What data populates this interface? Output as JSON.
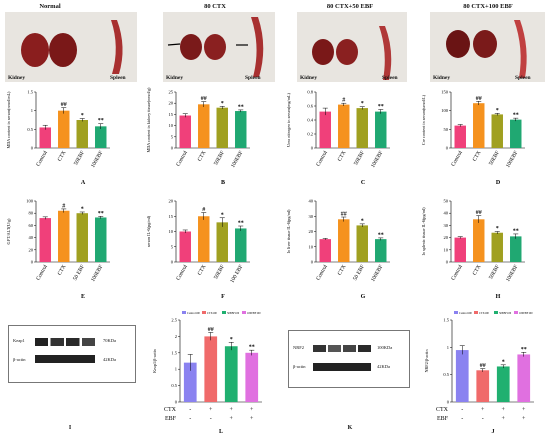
{
  "photos": [
    {
      "title": "Normal",
      "kidney_label": "Kidney",
      "spleen_label": "Spleen"
    },
    {
      "title": "80 CTX",
      "kidney_label": "Kidney",
      "spleen_label": "Spleen"
    },
    {
      "title": "80 CTX+50 EBF",
      "kidney_label": "Kidney",
      "spleen_label": "Spleen"
    },
    {
      "title": "80 CTX+100 EBF",
      "kidney_label": "Kidney",
      "spleen_label": "Spleen"
    }
  ],
  "colors": {
    "control": "#f0407a",
    "ctx": "#f5921e",
    "ebf50": "#a0a020",
    "ebf100": "#20a872",
    "l_control": "#8a82f0",
    "l_ctx": "#f06a6a",
    "l_ebf50": "#20b070",
    "l_ebf100": "#e070e0"
  },
  "chart_data": [
    {
      "id": "A",
      "type": "bar",
      "ylabel": "MDA content in serum(nmol/mL)",
      "categories": [
        "Control",
        "CTX",
        "50EBF",
        "100EBF"
      ],
      "values": [
        0.55,
        1.0,
        0.75,
        0.58
      ],
      "errors": [
        0.06,
        0.08,
        0.04,
        0.07
      ],
      "ylim": [
        0,
        1.5
      ],
      "yticks": [
        0,
        0.5,
        1.0,
        1.5
      ],
      "sig": [
        "",
        "##",
        "*",
        "**"
      ],
      "letter": "A"
    },
    {
      "id": "B",
      "type": "bar",
      "ylabel": "MDA content in kidney tissue(nmol/g)",
      "categories": [
        "Control",
        "CTX",
        "50EBF",
        "100EBF"
      ],
      "values": [
        14.5,
        19.5,
        18,
        16.5
      ],
      "errors": [
        0.8,
        1.2,
        0.6,
        0.5
      ],
      "ylim": [
        0,
        25
      ],
      "yticks": [
        0,
        5,
        10,
        15,
        20,
        25
      ],
      "sig": [
        "",
        "##",
        "*",
        "**"
      ],
      "letter": "B"
    },
    {
      "id": "C",
      "type": "bar",
      "ylabel": "Urea nitrogen in serum(mg/mL)",
      "categories": [
        "Control",
        "CTX",
        "50EBF",
        "100EBF"
      ],
      "values": [
        0.52,
        0.62,
        0.57,
        0.52
      ],
      "errors": [
        0.05,
        0.02,
        0.02,
        0.03
      ],
      "ylim": [
        0,
        0.8
      ],
      "yticks": [
        0,
        0.2,
        0.4,
        0.6,
        0.8
      ],
      "sig": [
        "",
        "#",
        "*",
        "**"
      ],
      "letter": "C"
    },
    {
      "id": "D",
      "type": "bar",
      "ylabel": "Cre content in serum(umol/L)",
      "categories": [
        "Control",
        "CTX",
        "50EBF",
        "100EBF"
      ],
      "values": [
        60,
        120,
        90,
        76
      ],
      "errors": [
        3,
        5,
        3,
        4
      ],
      "ylim": [
        0,
        150
      ],
      "yticks": [
        0,
        50,
        100,
        150
      ],
      "sig": [
        "",
        "##",
        "*",
        "**"
      ],
      "letter": "D"
    },
    {
      "id": "E",
      "type": "bar",
      "ylabel": "GPT/ALT(U/g)",
      "categories": [
        "Control",
        "CTX",
        "50 EBF",
        "100EBF"
      ],
      "values": [
        72,
        84,
        80,
        73
      ],
      "errors": [
        2,
        3,
        2,
        2
      ],
      "ylim": [
        0,
        100
      ],
      "yticks": [
        0,
        20,
        40,
        60,
        80,
        100
      ],
      "sig": [
        "",
        "#",
        "*",
        "**"
      ],
      "letter": "E"
    },
    {
      "id": "F",
      "type": "bar",
      "ylabel": "serum IL-6(pg/ml)",
      "categories": [
        "Control",
        "CTX",
        "50EBF",
        "100 EBF"
      ],
      "values": [
        10,
        15,
        13,
        11
      ],
      "errors": [
        0.5,
        1.2,
        1.5,
        0.8
      ],
      "ylim": [
        0,
        20
      ],
      "yticks": [
        0,
        5,
        10,
        15,
        20
      ],
      "sig": [
        "",
        "#",
        "*",
        "**"
      ],
      "letter": "F"
    },
    {
      "id": "G",
      "type": "bar",
      "ylabel": "In liver tissue IL-6(pg/ml)",
      "categories": [
        "Control",
        "CTX",
        "50 EBF",
        "100EBF"
      ],
      "values": [
        15,
        28,
        24,
        15
      ],
      "errors": [
        0.5,
        1.5,
        1,
        0.8
      ],
      "ylim": [
        0,
        40
      ],
      "yticks": [
        0,
        10,
        20,
        30,
        40
      ],
      "sig": [
        "",
        "##",
        "*",
        "**"
      ],
      "letter": "G"
    },
    {
      "id": "H",
      "type": "bar",
      "ylabel": "In splenic tissue IL-6(pg/ml)",
      "categories": [
        "Control",
        "CTX",
        "50EBF",
        "100EBF"
      ],
      "values": [
        20,
        35,
        24,
        21
      ],
      "errors": [
        0.8,
        3,
        1,
        2
      ],
      "ylim": [
        0,
        50
      ],
      "yticks": [
        0,
        10,
        20,
        30,
        40,
        50
      ],
      "sig": [
        "",
        "##",
        "*",
        "**"
      ],
      "letter": "H"
    },
    {
      "id": "L",
      "type": "bar",
      "ylabel": "Keap1/β-actin",
      "legend": [
        "Control100",
        "CTX100",
        "50EBF100",
        "100EBF100"
      ],
      "values": [
        1.2,
        2.0,
        1.7,
        1.5
      ],
      "errors": [
        0.25,
        0.12,
        0.12,
        0.08
      ],
      "ylim": [
        0,
        2.5
      ],
      "yticks": [
        0,
        0.5,
        1.0,
        1.5,
        2.0,
        2.5
      ],
      "sig": [
        "",
        "##",
        "*",
        "**"
      ],
      "ctx": [
        "-",
        "+",
        "+",
        "+"
      ],
      "ebf": [
        "-",
        "-",
        "+",
        "+"
      ],
      "letter": "L"
    },
    {
      "id": "J",
      "type": "bar",
      "ylabel": "NRF2/β-actin",
      "legend": [
        "Control100",
        "CTX100",
        "50EBF100",
        "100EBF100"
      ],
      "values": [
        0.95,
        0.58,
        0.65,
        0.87
      ],
      "errors": [
        0.08,
        0.03,
        0.03,
        0.04
      ],
      "ylim": [
        0,
        1.5
      ],
      "yticks": [
        0,
        0.5,
        1.0,
        1.5
      ],
      "sig": [
        "",
        "##",
        "*",
        "**"
      ],
      "ctx": [
        "-",
        "+",
        "+",
        "+"
      ],
      "ebf": [
        "-",
        "-",
        "+",
        "+"
      ],
      "letter": "J"
    }
  ],
  "treatment_labels": {
    "ctx": "CTX",
    "ebf": "EBF"
  },
  "western_blots": [
    {
      "id": "I",
      "protein": "Keap1",
      "loading": "β-actin",
      "protein_kda": "70KDa",
      "loading_kda": "42KDa",
      "letter": "I"
    },
    {
      "id": "K",
      "protein": "NRF2",
      "loading": "β-actin",
      "protein_kda": "100KDa",
      "loading_kda": "42KDa",
      "letter": "K"
    }
  ]
}
